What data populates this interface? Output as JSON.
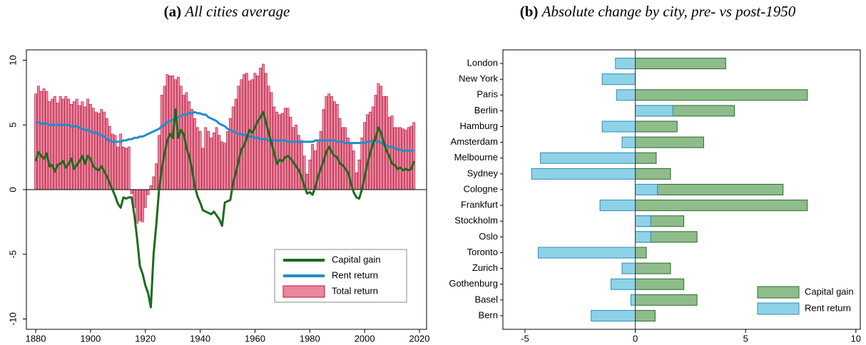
{
  "chart_data": [
    {
      "type": "bar-line",
      "label": "(a)",
      "title": "All cities average",
      "x": [
        1880,
        1881,
        1882,
        1883,
        1884,
        1885,
        1886,
        1887,
        1888,
        1889,
        1890,
        1891,
        1892,
        1893,
        1894,
        1895,
        1896,
        1897,
        1898,
        1899,
        1900,
        1901,
        1902,
        1903,
        1904,
        1905,
        1906,
        1907,
        1908,
        1909,
        1910,
        1911,
        1912,
        1913,
        1914,
        1915,
        1916,
        1917,
        1918,
        1919,
        1920,
        1921,
        1922,
        1923,
        1924,
        1925,
        1926,
        1927,
        1928,
        1929,
        1930,
        1931,
        1932,
        1933,
        1934,
        1935,
        1936,
        1937,
        1938,
        1939,
        1940,
        1941,
        1942,
        1943,
        1944,
        1945,
        1946,
        1947,
        1948,
        1949,
        1950,
        1951,
        1952,
        1953,
        1954,
        1955,
        1956,
        1957,
        1958,
        1959,
        1960,
        1961,
        1962,
        1963,
        1964,
        1965,
        1966,
        1967,
        1968,
        1969,
        1970,
        1971,
        1972,
        1973,
        1974,
        1975,
        1976,
        1977,
        1978,
        1979,
        1980,
        1981,
        1982,
        1983,
        1984,
        1985,
        1986,
        1987,
        1988,
        1989,
        1990,
        1991,
        1992,
        1993,
        1994,
        1995,
        1996,
        1997,
        1998,
        1999,
        2000,
        2001,
        2002,
        2003,
        2004,
        2005,
        2006,
        2007,
        2008,
        2009,
        2010,
        2011,
        2012,
        2013,
        2014,
        2015,
        2016,
        2017,
        2018
      ],
      "series": [
        {
          "name": "Capital gain",
          "type": "line",
          "color": "#1d6b1d",
          "values": [
            2.2,
            2.9,
            2.6,
            2.4,
            2.8,
            1.8,
            1.9,
            1.4,
            1.9,
            2.0,
            2.2,
            1.7,
            2.0,
            2.4,
            1.6,
            1.9,
            2.2,
            2.6,
            2.0,
            2.6,
            2.4,
            1.8,
            1.6,
            1.5,
            1.8,
            1.4,
            1.0,
            0.5,
            0.0,
            -0.5,
            -1.1,
            -1.4,
            -0.6,
            -0.7,
            -0.6,
            -0.6,
            -2.0,
            -3.8,
            -5.9,
            -6.5,
            -7.4,
            -8.0,
            -9.1,
            -5.0,
            -2.7,
            0.0,
            1.6,
            2.8,
            3.8,
            4.3,
            4.0,
            6.2,
            4.0,
            4.6,
            4.3,
            3.2,
            2.6,
            1.6,
            0.3,
            -0.5,
            -1.0,
            -1.6,
            -1.7,
            -1.8,
            -1.9,
            -1.7,
            -2.0,
            -2.3,
            -2.8,
            -1.0,
            -0.9,
            -0.8,
            0.5,
            1.3,
            2.2,
            3.1,
            3.4,
            4.0,
            4.6,
            4.4,
            4.8,
            5.3,
            5.6,
            6.0,
            5.2,
            4.4,
            3.6,
            2.8,
            2.0,
            2.3,
            2.2,
            2.5,
            2.6,
            2.4,
            2.1,
            1.8,
            1.5,
            1.0,
            0.3,
            -0.3,
            -0.2,
            -0.4,
            0.2,
            1.0,
            1.6,
            2.2,
            2.9,
            3.3,
            2.9,
            2.6,
            2.5,
            2.0,
            1.9,
            1.6,
            1.3,
            0.5,
            -0.2,
            -0.6,
            -0.7,
            0.0,
            1.0,
            2.0,
            2.8,
            3.5,
            4.0,
            4.8,
            4.4,
            3.6,
            3.0,
            2.6,
            2.0,
            1.9,
            1.6,
            1.7,
            1.5,
            1.6,
            1.5,
            1.6,
            2.2
          ]
        },
        {
          "name": "Rent return",
          "type": "line",
          "color": "#1f8fc9",
          "values": [
            5.2,
            5.2,
            5.1,
            5.1,
            5.1,
            5.0,
            5.0,
            5.0,
            5.0,
            5.0,
            5.0,
            5.0,
            5.0,
            4.9,
            4.9,
            4.9,
            4.8,
            4.7,
            4.6,
            4.6,
            4.5,
            4.4,
            4.4,
            4.3,
            4.2,
            4.1,
            3.9,
            3.8,
            3.7,
            3.7,
            3.7,
            3.7,
            3.8,
            3.8,
            3.9,
            3.9,
            4.0,
            4.0,
            4.1,
            4.1,
            4.2,
            4.3,
            4.4,
            4.5,
            4.6,
            4.7,
            4.9,
            5.0,
            5.2,
            5.3,
            5.4,
            5.5,
            5.6,
            5.7,
            5.8,
            5.8,
            5.9,
            5.9,
            6.0,
            5.9,
            5.9,
            5.8,
            5.8,
            5.6,
            5.5,
            5.4,
            5.3,
            5.1,
            5.0,
            4.9,
            4.7,
            4.6,
            4.5,
            4.4,
            4.3,
            4.3,
            4.2,
            4.2,
            4.1,
            4.1,
            4.0,
            4.0,
            3.9,
            3.9,
            3.9,
            3.8,
            3.8,
            3.8,
            3.8,
            3.8,
            3.8,
            3.8,
            3.7,
            3.7,
            3.7,
            3.7,
            3.7,
            3.7,
            3.7,
            3.7,
            3.7,
            3.7,
            3.8,
            3.8,
            3.8,
            3.8,
            3.8,
            3.8,
            3.8,
            3.8,
            3.7,
            3.7,
            3.7,
            3.6,
            3.6,
            3.6,
            3.6,
            3.6,
            3.6,
            3.6,
            3.6,
            3.7,
            3.7,
            3.8,
            3.8,
            3.7,
            3.6,
            3.5,
            3.4,
            3.3,
            3.3,
            3.2,
            3.1,
            3.1,
            3.0,
            3.0,
            3.0,
            3.0,
            3.0
          ]
        },
        {
          "name": "Total return",
          "type": "bar",
          "color": "#e8879e",
          "edgecolor": "#b8123c",
          "values": [
            7.4,
            8.0,
            7.6,
            7.8,
            7.6,
            6.8,
            7.0,
            7.2,
            6.7,
            7.2,
            7.0,
            7.2,
            7.0,
            6.6,
            6.8,
            7.0,
            6.5,
            6.8,
            6.4,
            7.0,
            6.6,
            6.3,
            6.0,
            5.9,
            6.2,
            6.0,
            5.5,
            4.9,
            4.3,
            4.2,
            3.3,
            4.3,
            3.3,
            3.2,
            3.3,
            -0.3,
            -1.4,
            -2.6,
            -2.4,
            -2.5,
            -1.4,
            -0.4,
            0.3,
            1.0,
            2.0,
            4.2,
            7.3,
            8.0,
            8.9,
            8.8,
            8.8,
            8.5,
            8.7,
            8.0,
            7.3,
            7.5,
            6.8,
            6.2,
            5.5,
            4.8,
            4.5,
            3.2,
            4.8,
            4.5,
            4.0,
            4.4,
            4.8,
            4.2,
            3.7,
            3.6,
            4.5,
            5.5,
            6.4,
            7.0,
            8.0,
            8.5,
            8.9,
            9.0,
            8.4,
            8.5,
            9.0,
            8.8,
            9.4,
            9.7,
            9.0,
            8.0,
            7.5,
            6.4,
            6.0,
            5.8,
            5.9,
            6.3,
            6.3,
            5.6,
            4.8,
            5.0,
            4.2,
            3.8,
            2.6,
            1.2,
            2.3,
            3.5,
            3.0,
            3.8,
            4.5,
            6.2,
            7.2,
            7.4,
            7.2,
            6.8,
            6.6,
            5.5,
            4.8,
            4.8,
            4.0,
            3.6,
            3.0,
            1.3,
            2.3,
            4.0,
            5.2,
            5.8,
            6.0,
            6.4,
            7.3,
            8.2,
            8.0,
            7.2,
            7.2,
            5.6,
            5.7,
            4.8,
            4.8,
            4.8,
            4.7,
            4.6,
            4.8,
            4.9,
            5.2
          ]
        }
      ],
      "xlim": [
        1876.6,
        2022.6
      ],
      "xticks": [
        1880,
        1900,
        1920,
        1940,
        1960,
        1980,
        2000,
        2020
      ],
      "ylim": [
        -10.8,
        10.8
      ],
      "yticks": [
        -10,
        -5,
        0,
        5,
        10
      ],
      "legend": "lower right"
    },
    {
      "type": "hbar",
      "label": "(b)",
      "title": "Absolute change by city, pre- vs post-1950",
      "categories": [
        "London",
        "New York",
        "Paris",
        "Berlin",
        "Hamburg",
        "Amsterdam",
        "Melbourne",
        "Sydney",
        "Cologne",
        "Frankfurt",
        "Stockholm",
        "Oslo",
        "Toronto",
        "Zurich",
        "Gothenburg",
        "Basel",
        "Bern"
      ],
      "series": [
        {
          "name": "Capital gain",
          "color": "#8fbc8b",
          "edgecolor": "#2e6b2e",
          "values": [
            4.1,
            null,
            7.8,
            4.5,
            1.9,
            3.1,
            0.95,
            1.6,
            6.7,
            7.8,
            2.2,
            2.8,
            0.5,
            1.6,
            2.2,
            2.8,
            0.9
          ]
        },
        {
          "name": "Rent return",
          "color": "#8ed2e8",
          "edgecolor": "#2a8fb8",
          "values": [
            -0.9,
            -1.5,
            -0.85,
            1.7,
            -1.5,
            -0.6,
            -4.3,
            -4.7,
            1.0,
            -1.6,
            0.7,
            0.7,
            -4.4,
            -0.6,
            -1.1,
            -0.2,
            -2.0
          ]
        }
      ],
      "xlim": [
        -6,
        10.2
      ],
      "xticks": [
        -5,
        0,
        5,
        10
      ],
      "legend": "lower right"
    }
  ]
}
